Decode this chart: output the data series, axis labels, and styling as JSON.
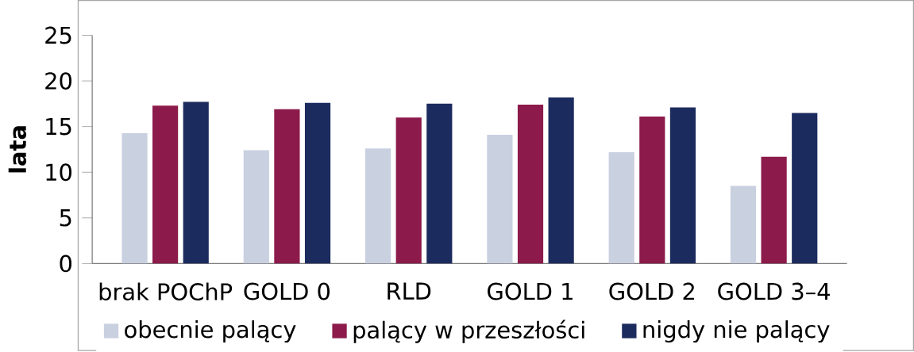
{
  "chart_data": {
    "type": "bar",
    "ylabel": "lata",
    "categories": [
      "brak POChP",
      "GOLD 0",
      "RLD",
      "GOLD 1",
      "GOLD 2",
      "GOLD 3–4"
    ],
    "series": [
      {
        "name": "obecnie palący",
        "color": "#c9d0e0",
        "values": [
          14.3,
          12.4,
          12.6,
          14.1,
          12.2,
          8.5
        ]
      },
      {
        "name": "palący w przeszłości",
        "color": "#8c1a4b",
        "values": [
          17.3,
          16.9,
          16.0,
          17.4,
          16.1,
          11.7
        ]
      },
      {
        "name": "nigdy nie palący",
        "color": "#1c2b5e",
        "values": [
          17.7,
          17.6,
          17.5,
          18.2,
          17.1,
          16.5
        ]
      }
    ],
    "ylim": [
      0,
      25
    ],
    "yticks": [
      0,
      5,
      10,
      15,
      20,
      25
    ],
    "grid": false,
    "legend": "bottom"
  }
}
